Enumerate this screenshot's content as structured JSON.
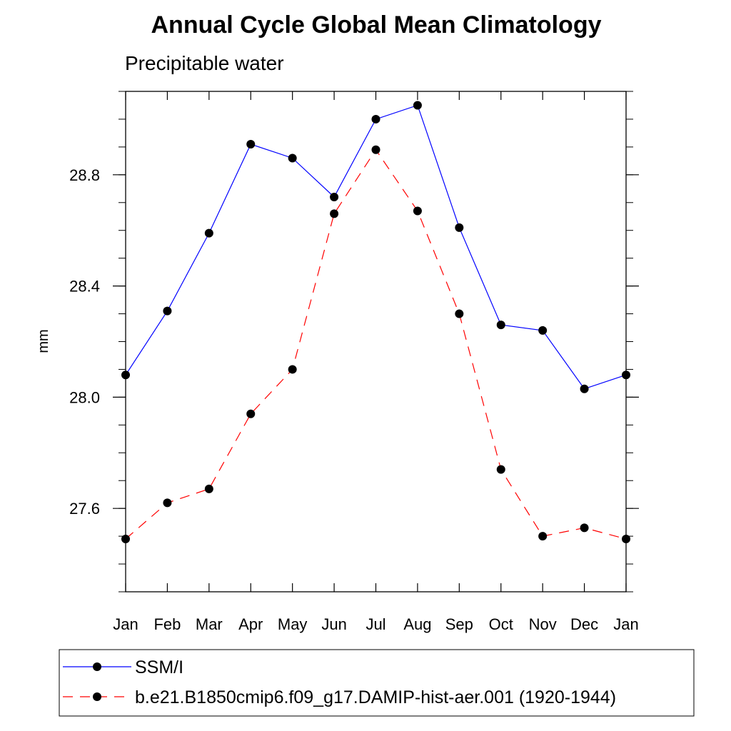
{
  "chart_data": {
    "type": "line",
    "title": "Annual Cycle Global Mean Climatology",
    "subtitle": "Precipitable water",
    "xlabel": "",
    "ylabel": "mm",
    "categories": [
      "Jan",
      "Feb",
      "Mar",
      "Apr",
      "May",
      "Jun",
      "Jul",
      "Aug",
      "Sep",
      "Oct",
      "Nov",
      "Dec",
      "Jan"
    ],
    "ylim": [
      27.3,
      29.1
    ],
    "yticks": [
      "27.6",
      "28.0",
      "28.4",
      "28.8"
    ],
    "ytick_values": [
      27.6,
      28.0,
      28.4,
      28.8
    ],
    "grid": false,
    "legend_position": "bottom",
    "series": [
      {
        "name": "SSM/I",
        "color": "#0000ff",
        "dashed": false,
        "values": [
          28.08,
          28.31,
          28.59,
          28.91,
          28.86,
          28.72,
          29.0,
          29.05,
          28.61,
          28.26,
          28.24,
          28.03,
          28.08
        ]
      },
      {
        "name": "b.e21.B1850cmip6.f09_g17.DAMIP-hist-aer.001 (1920-1944)",
        "color": "#ff0000",
        "dashed": true,
        "values": [
          27.49,
          27.62,
          27.67,
          27.94,
          28.1,
          28.66,
          28.89,
          28.67,
          28.3,
          27.74,
          27.5,
          27.53,
          27.49
        ]
      }
    ]
  }
}
